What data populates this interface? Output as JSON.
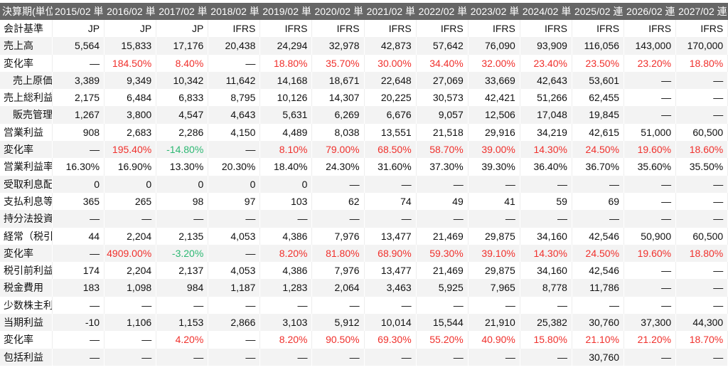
{
  "header": [
    "決算期(単位",
    "2015/02 単",
    "2016/02 単",
    "2017/02 単",
    "2018/02 単",
    "2019/02 単",
    "2020/02 単",
    "2021/02 単",
    "2022/02 単",
    "2023/02 単",
    "2024/02 単",
    "2025/02 連",
    "2026/02 連",
    "2027/02 連"
  ],
  "colors": {
    "header_bg": "#666666",
    "positive": "#f0302c",
    "negative": "#2db873",
    "alt_row": "#f3f3f3"
  },
  "rows": [
    {
      "label": "会計基準",
      "values": [
        "JP",
        "JP",
        "JP",
        "IFRS",
        "IFRS",
        "IFRS",
        "IFRS",
        "IFRS",
        "IFRS",
        "IFRS",
        "IFRS",
        "IFRS",
        "IFRS"
      ]
    },
    {
      "label": "売上高",
      "values": [
        "5,564",
        "15,833",
        "17,176",
        "20,438",
        "24,294",
        "32,978",
        "42,873",
        "57,642",
        "76,090",
        "93,909",
        "116,056",
        "143,000",
        "170,000"
      ]
    },
    {
      "label": "変化率",
      "change": true,
      "values": [
        "—",
        "184.50%",
        "8.40%",
        "—",
        "18.80%",
        "35.70%",
        "30.00%",
        "34.40%",
        "32.00%",
        "23.40%",
        "23.50%",
        "23.20%",
        "18.80%"
      ]
    },
    {
      "label": "売上原価",
      "indent": true,
      "values": [
        "3,389",
        "9,349",
        "10,342",
        "11,642",
        "14,168",
        "18,671",
        "22,648",
        "27,069",
        "33,669",
        "42,643",
        "53,601",
        "—",
        "—"
      ]
    },
    {
      "label": "売上総利益",
      "values": [
        "2,175",
        "6,484",
        "6,833",
        "8,795",
        "10,126",
        "14,307",
        "20,225",
        "30,573",
        "42,421",
        "51,266",
        "62,455",
        "—",
        "—"
      ]
    },
    {
      "label": "販売管理費",
      "indent": true,
      "values": [
        "1,267",
        "3,800",
        "4,547",
        "4,643",
        "5,631",
        "6,269",
        "6,676",
        "9,057",
        "12,506",
        "17,048",
        "19,845",
        "—",
        "—"
      ]
    },
    {
      "label": "営業利益",
      "values": [
        "908",
        "2,683",
        "2,286",
        "4,150",
        "4,489",
        "8,038",
        "13,551",
        "21,518",
        "29,916",
        "34,219",
        "42,615",
        "51,000",
        "60,500"
      ]
    },
    {
      "label": "変化率",
      "change": true,
      "values": [
        "—",
        "195.40%",
        "-14.80%",
        "—",
        "8.10%",
        "79.00%",
        "68.50%",
        "58.70%",
        "39.00%",
        "14.30%",
        "24.50%",
        "19.60%",
        "18.60%"
      ]
    },
    {
      "label": "営業利益率",
      "values": [
        "16.30%",
        "16.90%",
        "13.30%",
        "20.30%",
        "18.40%",
        "24.30%",
        "31.60%",
        "37.30%",
        "39.30%",
        "36.40%",
        "36.70%",
        "35.60%",
        "35.50%"
      ]
    },
    {
      "label": "受取利息配当",
      "values": [
        "0",
        "0",
        "0",
        "0",
        "0",
        "—",
        "—",
        "—",
        "—",
        "—",
        "—",
        "—",
        "—"
      ]
    },
    {
      "label": "支払利息等",
      "values": [
        "365",
        "265",
        "98",
        "97",
        "103",
        "62",
        "74",
        "49",
        "41",
        "59",
        "69",
        "—",
        "—"
      ]
    },
    {
      "label": "持分法投資",
      "values": [
        "—",
        "—",
        "—",
        "—",
        "—",
        "—",
        "—",
        "—",
        "—",
        "—",
        "—",
        "—",
        "—"
      ]
    },
    {
      "label": "経常（税引",
      "values": [
        "44",
        "2,204",
        "2,135",
        "4,053",
        "4,386",
        "7,976",
        "13,477",
        "21,469",
        "29,875",
        "34,160",
        "42,546",
        "50,900",
        "60,500"
      ]
    },
    {
      "label": "変化率",
      "change": true,
      "values": [
        "—",
        "4909.00%",
        "-3.20%",
        "—",
        "8.20%",
        "81.80%",
        "68.90%",
        "59.30%",
        "39.10%",
        "14.30%",
        "24.50%",
        "19.60%",
        "18.80%"
      ]
    },
    {
      "label": "税引前利益",
      "values": [
        "174",
        "2,204",
        "2,137",
        "4,053",
        "4,386",
        "7,976",
        "13,477",
        "21,469",
        "29,875",
        "34,160",
        "42,546",
        "—",
        "—"
      ]
    },
    {
      "label": "税金費用",
      "values": [
        "183",
        "1,098",
        "984",
        "1,187",
        "1,283",
        "2,064",
        "3,463",
        "5,925",
        "7,965",
        "8,778",
        "11,786",
        "—",
        "—"
      ]
    },
    {
      "label": "少数株主利益",
      "values": [
        "—",
        "—",
        "—",
        "—",
        "—",
        "—",
        "—",
        "—",
        "—",
        "—",
        "—",
        "—",
        "—"
      ]
    },
    {
      "label": "当期利益",
      "values": [
        "-10",
        "1,106",
        "1,153",
        "2,866",
        "3,103",
        "5,912",
        "10,014",
        "15,544",
        "21,910",
        "25,382",
        "30,760",
        "37,300",
        "44,300"
      ]
    },
    {
      "label": "変化率",
      "change": true,
      "values": [
        "—",
        "—",
        "4.20%",
        "—",
        "8.20%",
        "90.50%",
        "69.30%",
        "55.20%",
        "40.90%",
        "15.80%",
        "21.10%",
        "21.20%",
        "18.70%"
      ]
    },
    {
      "label": "包括利益",
      "values": [
        "—",
        "—",
        "—",
        "—",
        "—",
        "—",
        "—",
        "—",
        "—",
        "—",
        "30,760",
        "—",
        "—"
      ]
    }
  ]
}
